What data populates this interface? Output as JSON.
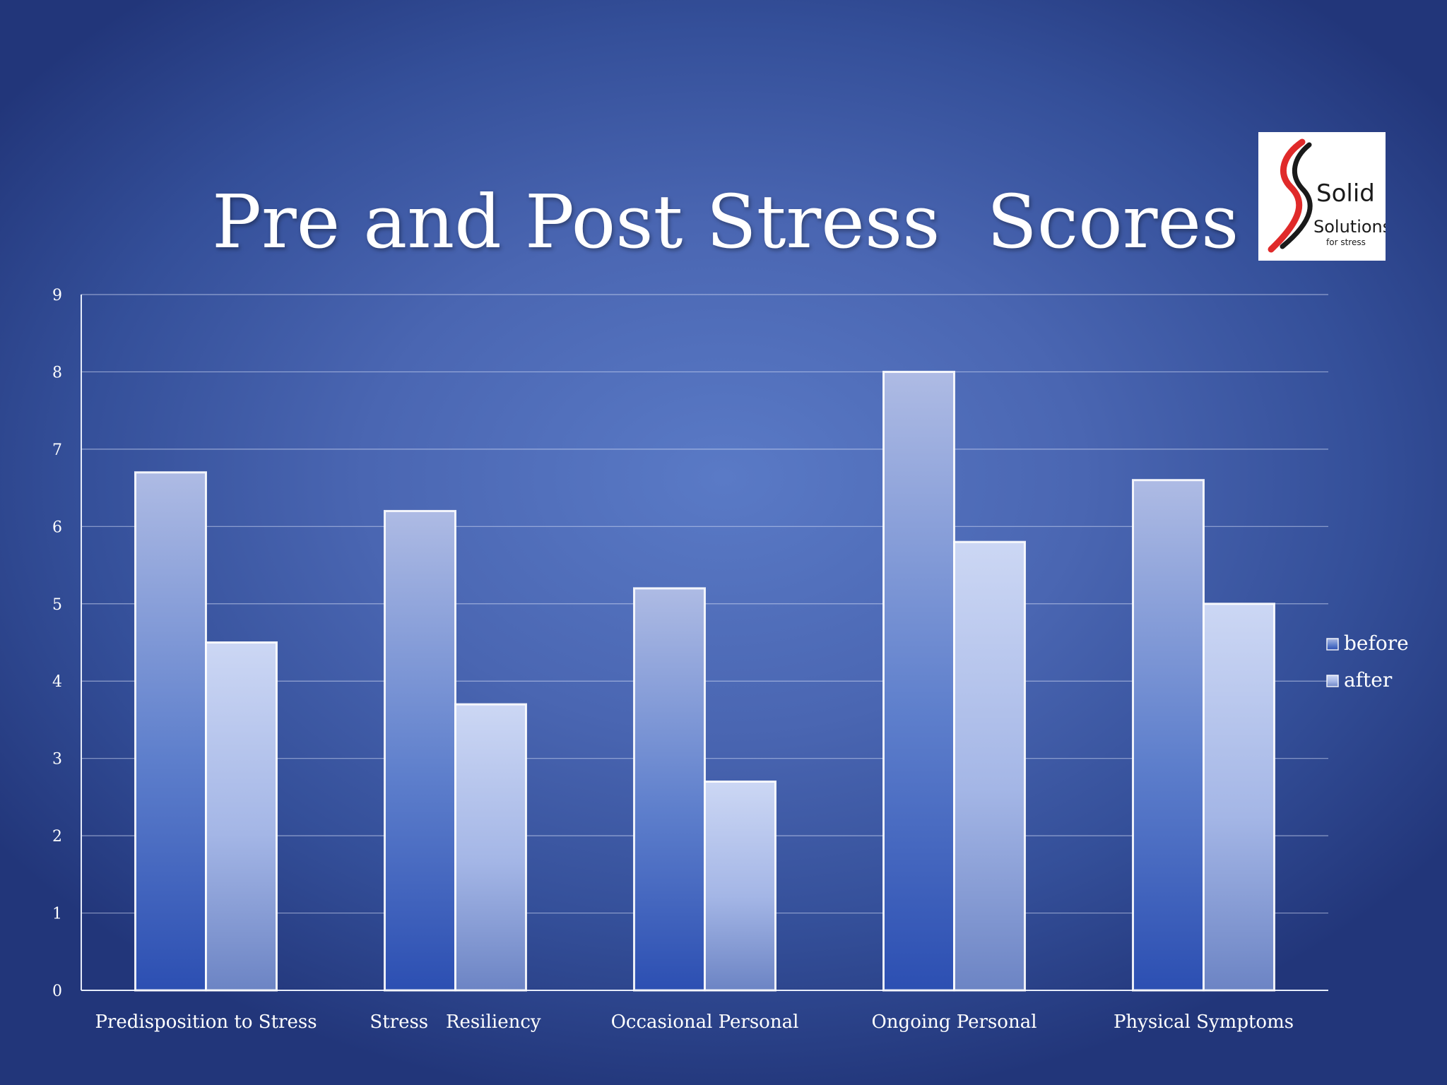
{
  "slide": {
    "title": "Pre and Post Stress  Scores"
  },
  "logo": {
    "line1": "Solid",
    "line2": "Solutions",
    "line3": "for stress",
    "colors": {
      "red": "#e02a2a",
      "black": "#1a1a1a"
    }
  },
  "chart_data": {
    "type": "bar",
    "title": "Pre and Post Stress  Scores",
    "xlabel": "",
    "ylabel": "",
    "categories": [
      "Predisposition to Stress",
      "Stress   Resiliency",
      "Occasional Personal",
      "Ongoing Personal",
      "Physical Symptoms"
    ],
    "series": [
      {
        "name": "before",
        "values": [
          6.7,
          6.2,
          5.2,
          8.0,
          6.6
        ]
      },
      {
        "name": "after",
        "values": [
          4.5,
          3.7,
          2.7,
          5.8,
          5.0
        ]
      }
    ],
    "ylim": [
      0,
      9
    ],
    "yticks": [
      0,
      1,
      2,
      3,
      4,
      5,
      6,
      7,
      8,
      9
    ],
    "grid": true,
    "legend": "right"
  }
}
